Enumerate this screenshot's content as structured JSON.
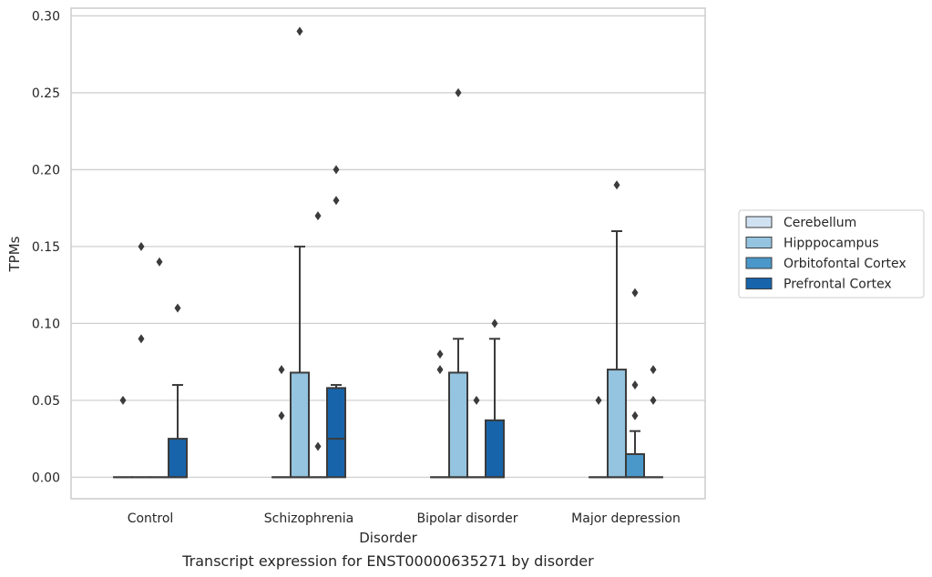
{
  "caption": "Transcript expression for ENST00000635271 by disorder",
  "chart_data": {
    "type": "box",
    "xlabel": "Disorder",
    "ylabel": "TPMs",
    "ylim": [
      -0.014,
      0.305
    ],
    "yticks": [
      "0.00",
      "0.05",
      "0.10",
      "0.15",
      "0.20",
      "0.25",
      "0.30"
    ],
    "categories": [
      "Control",
      "Schizophrenia",
      "Bipolar disorder",
      "Major depression"
    ],
    "grid": "horizontal",
    "legend_position": "right",
    "series": [
      {
        "name": "Cerebellum",
        "color": "#d0e1f2",
        "boxes": [
          {
            "category": "Control",
            "q1": 0,
            "median": 0,
            "q3": 0,
            "whisker_low": 0,
            "whisker_high": 0,
            "outliers": [
              0.05
            ]
          },
          {
            "category": "Schizophrenia",
            "q1": 0,
            "median": 0,
            "q3": 0,
            "whisker_low": 0,
            "whisker_high": 0,
            "outliers": [
              0.07,
              0.04
            ]
          },
          {
            "category": "Bipolar disorder",
            "q1": 0,
            "median": 0,
            "q3": 0,
            "whisker_low": 0,
            "whisker_high": 0,
            "outliers": [
              0.08,
              0.07
            ]
          },
          {
            "category": "Major depression",
            "q1": 0,
            "median": 0,
            "q3": 0,
            "whisker_low": 0,
            "whisker_high": 0,
            "outliers": [
              0.05
            ]
          }
        ]
      },
      {
        "name": "Hipppocampus",
        "color": "#94c4df",
        "boxes": [
          {
            "category": "Control",
            "q1": 0,
            "median": 0,
            "q3": 0,
            "whisker_low": 0,
            "whisker_high": 0,
            "outliers": [
              0.15,
              0.09
            ]
          },
          {
            "category": "Schizophrenia",
            "q1": 0,
            "median": 0,
            "q3": 0.068,
            "whisker_low": 0,
            "whisker_high": 0.15,
            "outliers": [
              0.29
            ]
          },
          {
            "category": "Bipolar disorder",
            "q1": 0,
            "median": 0,
            "q3": 0.068,
            "whisker_low": 0,
            "whisker_high": 0.09,
            "outliers": [
              0.25
            ]
          },
          {
            "category": "Major depression",
            "q1": 0,
            "median": 0,
            "q3": 0.07,
            "whisker_low": 0,
            "whisker_high": 0.16,
            "outliers": [
              0.19
            ]
          }
        ]
      },
      {
        "name": "Orbitofontal Cortex",
        "color": "#4a98c9",
        "boxes": [
          {
            "category": "Control",
            "q1": 0,
            "median": 0,
            "q3": 0,
            "whisker_low": 0,
            "whisker_high": 0,
            "outliers": [
              0.14
            ]
          },
          {
            "category": "Schizophrenia",
            "q1": 0,
            "median": 0,
            "q3": 0,
            "whisker_low": 0,
            "whisker_high": 0,
            "outliers": [
              0.17,
              0.02
            ]
          },
          {
            "category": "Bipolar disorder",
            "q1": 0,
            "median": 0,
            "q3": 0,
            "whisker_low": 0,
            "whisker_high": 0,
            "outliers": [
              0.05
            ]
          },
          {
            "category": "Major depression",
            "q1": 0,
            "median": 0,
            "q3": 0.015,
            "whisker_low": 0,
            "whisker_high": 0.03,
            "outliers": [
              0.12,
              0.06,
              0.04
            ]
          }
        ]
      },
      {
        "name": "Prefrontal Cortex",
        "color": "#1764ab",
        "boxes": [
          {
            "category": "Control",
            "q1": 0,
            "median": 0,
            "q3": 0.025,
            "whisker_low": 0,
            "whisker_high": 0.06,
            "outliers": [
              0.11
            ]
          },
          {
            "category": "Schizophrenia",
            "q1": 0,
            "median": 0.025,
            "q3": 0.058,
            "whisker_low": 0,
            "whisker_high": 0.06,
            "outliers": [
              0.2,
              0.18
            ]
          },
          {
            "category": "Bipolar disorder",
            "q1": 0,
            "median": 0,
            "q3": 0.037,
            "whisker_low": 0,
            "whisker_high": 0.09,
            "outliers": [
              0.1
            ]
          },
          {
            "category": "Major depression",
            "q1": 0,
            "median": 0,
            "q3": 0,
            "whisker_low": 0,
            "whisker_high": 0,
            "outliers": [
              0.07,
              0.05
            ]
          }
        ]
      }
    ]
  }
}
